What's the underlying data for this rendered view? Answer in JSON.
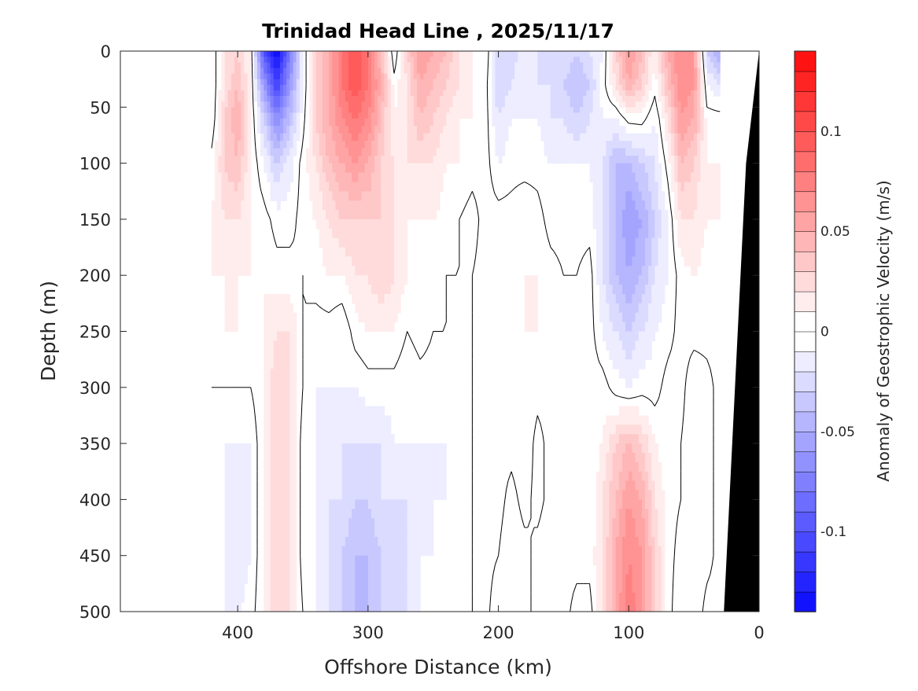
{
  "chart_data": {
    "type": "heatmap",
    "title": "Trinidad Head Line , 2025/11/17",
    "xlabel": "Offshore Distance (km)",
    "ylabel": "Depth (m)",
    "colorbar_label": "Anomaly of Geostrophic Velocity (m/s)",
    "xlim": [
      490,
      0
    ],
    "ylim": [
      500,
      0
    ],
    "x_reversed": true,
    "y_reversed": true,
    "xticks": [
      "400",
      "300",
      "200",
      "100",
      "0"
    ],
    "xtick_values": [
      400,
      300,
      200,
      100,
      0
    ],
    "yticks": [
      "0",
      "50",
      "100",
      "150",
      "200",
      "250",
      "300",
      "350",
      "400",
      "450",
      "500"
    ],
    "ytick_values": [
      0,
      50,
      100,
      150,
      200,
      250,
      300,
      350,
      400,
      450,
      500
    ],
    "colorbar": {
      "range": [
        -0.14,
        0.14
      ],
      "level_step": 0.01,
      "ticks": [
        "-0.1",
        "-0.05",
        "0",
        "0.05",
        "0.1"
      ],
      "tick_values": [
        -0.1,
        -0.05,
        0,
        0.05,
        0.1
      ],
      "colormap": "blue-white-red",
      "neg_color": "#0000ff",
      "pos_color": "#ff0000",
      "zero_color": "#ffffff"
    },
    "contour_level": 0,
    "contour_color": "#000000",
    "bathymetry_color": "#000000",
    "bathymetry_km_at_depth": [
      [
        0,
        0
      ],
      [
        100,
        10
      ],
      [
        500,
        27
      ]
    ],
    "depths": [
      0,
      30,
      60,
      100,
      150,
      200,
      250,
      300,
      350,
      400,
      450,
      500
    ],
    "distances": [
      420,
      410,
      400,
      390,
      380,
      370,
      360,
      350,
      340,
      330,
      320,
      310,
      300,
      290,
      280,
      270,
      260,
      250,
      240,
      230,
      220,
      210,
      200,
      190,
      180,
      170,
      160,
      150,
      140,
      130,
      120,
      110,
      100,
      90,
      80,
      70,
      60,
      50,
      40,
      30
    ],
    "values": [
      [
        -0.01,
        -0.01,
        -0.01,
        0.005,
        0.01,
        0.01,
        0.005,
        0,
        0,
        0,
        0,
        0
      ],
      [
        0.02,
        0.02,
        0.03,
        0.03,
        0.02,
        0.01,
        0.01,
        0,
        -0.01,
        -0.01,
        -0.01,
        -0.01
      ],
      [
        0.03,
        0.04,
        0.05,
        0.04,
        0.02,
        0.01,
        0.01,
        0,
        -0.01,
        -0.02,
        -0.02,
        -0.01
      ],
      [
        0.01,
        0.01,
        0.01,
        0.01,
        0.01,
        0.01,
        0.005,
        0,
        -0.01,
        -0.01,
        -0.01,
        -0.005
      ],
      [
        -0.1,
        -0.06,
        -0.03,
        -0.01,
        0.005,
        0.01,
        0.01,
        0.01,
        0.01,
        0.01,
        0.01,
        0.01
      ],
      [
        -0.14,
        -0.11,
        -0.07,
        -0.03,
        -0.005,
        0.005,
        0.02,
        0.03,
        0.03,
        0.03,
        0.03,
        0.03
      ],
      [
        -0.08,
        -0.06,
        -0.04,
        -0.015,
        -0.005,
        0.005,
        0.02,
        0.02,
        0.02,
        0.02,
        0.02,
        0.02
      ],
      [
        -0.01,
        -0.01,
        -0.005,
        0.005,
        0.005,
        0,
        0,
        0,
        -0.005,
        -0.005,
        -0.005,
        0
      ],
      [
        0.03,
        0.03,
        0.03,
        0.02,
        0.01,
        0.005,
        -0.005,
        -0.01,
        -0.01,
        -0.01,
        -0.01,
        -0.01
      ],
      [
        0.05,
        0.05,
        0.05,
        0.04,
        0.02,
        0.01,
        -0.005,
        -0.01,
        -0.01,
        -0.02,
        -0.02,
        -0.02
      ],
      [
        0.08,
        0.08,
        0.07,
        0.05,
        0.03,
        0.01,
        -0.01,
        -0.01,
        -0.02,
        -0.02,
        -0.03,
        -0.03
      ],
      [
        0.1,
        0.1,
        0.08,
        0.06,
        0.03,
        0.02,
        0.005,
        -0.01,
        -0.02,
        -0.03,
        -0.04,
        -0.04
      ],
      [
        0.08,
        0.08,
        0.07,
        0.05,
        0.03,
        0.02,
        0.01,
        -0.005,
        -0.02,
        -0.03,
        -0.04,
        -0.04
      ],
      [
        0.04,
        0.05,
        0.04,
        0.03,
        0.03,
        0.03,
        0.01,
        -0.005,
        -0.02,
        -0.02,
        -0.03,
        -0.03
      ],
      [
        -0.01,
        0.005,
        0.01,
        0.02,
        0.02,
        0.02,
        0.01,
        -0.005,
        -0.01,
        -0.02,
        -0.02,
        -0.02
      ],
      [
        0.03,
        0.02,
        0.02,
        0.02,
        0.01,
        0.01,
        0,
        -0.01,
        -0.01,
        -0.02,
        -0.02,
        -0.02
      ],
      [
        0.06,
        0.05,
        0.04,
        0.02,
        0.01,
        0.005,
        0.005,
        -0.005,
        -0.01,
        -0.01,
        -0.01,
        -0.01
      ],
      [
        0.05,
        0.04,
        0.03,
        0.02,
        0.01,
        0.005,
        0,
        -0.005,
        -0.01,
        -0.01,
        -0.01,
        -0.005
      ],
      [
        0.04,
        0.03,
        0.02,
        0.01,
        0.005,
        0,
        0,
        -0.005,
        -0.01,
        -0.01,
        -0.005,
        -0.005
      ],
      [
        0.02,
        0.02,
        0.01,
        0.01,
        0,
        0,
        0,
        0,
        -0.005,
        -0.005,
        -0.005,
        0
      ],
      [
        0.01,
        0.01,
        0.01,
        0.005,
        -0.005,
        0,
        0,
        0,
        0,
        0,
        0,
        0
      ],
      [
        0.01,
        0.005,
        0.005,
        0.005,
        0.005,
        0.005,
        0.005,
        0.005,
        0.005,
        0.005,
        0.005,
        0.005
      ],
      [
        -0.03,
        -0.03,
        -0.02,
        -0.01,
        0.005,
        0.005,
        0.005,
        0.005,
        0.005,
        0.005,
        0,
        -0.01
      ],
      [
        -0.03,
        -0.02,
        -0.01,
        -0.005,
        0.005,
        0.005,
        0.005,
        0.005,
        0.005,
        -0.005,
        -0.01,
        -0.01
      ],
      [
        -0.01,
        -0.01,
        -0.01,
        -0.005,
        0.01,
        0.01,
        0.01,
        0.01,
        0.01,
        0.005,
        -0.005,
        -0.005
      ],
      [
        -0.02,
        -0.02,
        -0.01,
        -0.005,
        0.005,
        0.01,
        0.01,
        0.005,
        -0.005,
        -0.005,
        0.005,
        0.005
      ],
      [
        -0.02,
        -0.02,
        -0.02,
        -0.01,
        -0.005,
        0.005,
        0.005,
        0.005,
        0.005,
        0.005,
        0.01,
        0.01
      ],
      [
        -0.02,
        -0.03,
        -0.02,
        -0.01,
        -0.005,
        0,
        0.005,
        0.005,
        0.005,
        0.005,
        0.005,
        0.005
      ],
      [
        -0.03,
        -0.04,
        -0.03,
        -0.01,
        -0.005,
        0,
        0.01,
        0.01,
        0.005,
        0.005,
        0.005,
        -0.005
      ],
      [
        -0.02,
        -0.03,
        -0.02,
        -0.01,
        -0.005,
        0.005,
        0.005,
        0.005,
        0.005,
        0,
        0.005,
        -0.005
      ],
      [
        -0.01,
        -0.005,
        -0.01,
        -0.02,
        -0.02,
        -0.02,
        -0.01,
        0.005,
        0.01,
        0.02,
        0.02,
        0.02
      ],
      [
        0.03,
        0.02,
        -0.01,
        -0.04,
        -0.04,
        -0.04,
        -0.02,
        -0.005,
        0.03,
        0.04,
        0.05,
        0.05
      ],
      [
        0.06,
        0.05,
        0.005,
        -0.04,
        -0.06,
        -0.05,
        -0.03,
        -0.01,
        0.04,
        0.06,
        0.07,
        0.08
      ],
      [
        0.04,
        0.03,
        0.005,
        -0.03,
        -0.05,
        -0.04,
        -0.02,
        -0.005,
        0.03,
        0.05,
        0.06,
        0.06
      ],
      [
        0.01,
        0.005,
        -0.01,
        -0.02,
        -0.03,
        -0.02,
        -0.01,
        -0.005,
        0.01,
        0.02,
        0.03,
        0.03
      ],
      [
        0.05,
        0.04,
        0.02,
        0.005,
        -0.01,
        -0.01,
        -0.005,
        0.005,
        0.005,
        0.005,
        0.005,
        0.005
      ],
      [
        0.07,
        0.07,
        0.06,
        0.04,
        0.02,
        0.005,
        0.005,
        0.005,
        0,
        0,
        -0.005,
        -0.01
      ],
      [
        0.06,
        0.06,
        0.05,
        0.03,
        0.02,
        0.01,
        0.005,
        -0.01,
        -0.01,
        -0.01,
        -0.01,
        -0.01
      ],
      [
        -0.03,
        -0.01,
        0.005,
        0.01,
        0.01,
        0.005,
        0.005,
        -0.005,
        -0.005,
        -0.005,
        -0.005,
        0.005
      ],
      [
        -0.05,
        -0.02,
        0.005,
        0.01,
        0.01,
        0.005,
        0.005,
        0.005,
        0.005,
        0.005,
        0.005,
        0.005
      ]
    ]
  }
}
